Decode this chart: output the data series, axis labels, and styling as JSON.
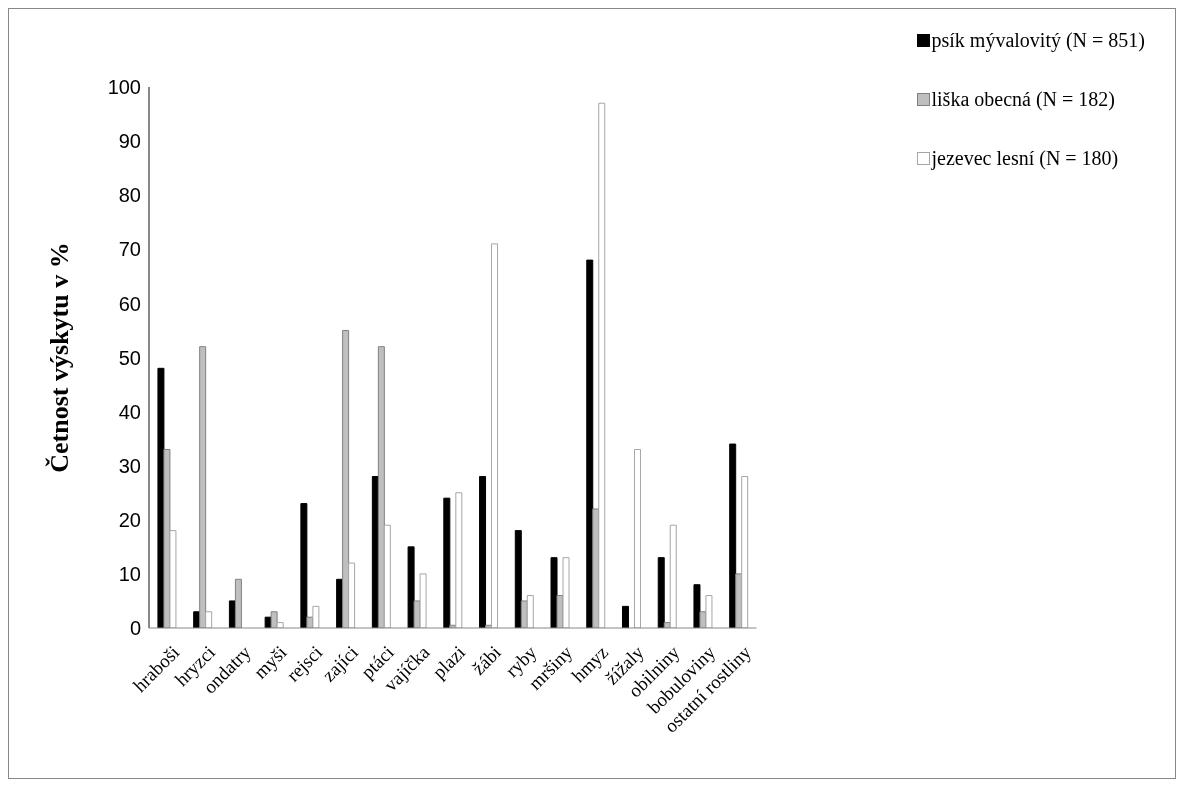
{
  "chart_data": {
    "type": "bar",
    "ylabel": "Četnost výskytu v %",
    "categories": [
      "hraboši",
      "hryzci",
      "ondatry",
      "myši",
      "rejsci",
      "zajíci",
      "ptáci",
      "vajíčka",
      "plazi",
      "žábi",
      "ryby",
      "mršiny",
      "hmyz",
      "žížaly",
      "obilniny",
      "bobuloviny",
      "ostatní rostliny"
    ],
    "series": [
      {
        "name": "psík mývalovitý (N = 851)",
        "color": "#000000",
        "values": [
          48,
          3,
          5,
          2,
          23,
          9,
          28,
          15,
          24,
          28,
          18,
          13,
          68,
          4,
          13,
          8,
          34
        ]
      },
      {
        "name": "liška obecná (N = 182)",
        "color": "#bfbfbf",
        "values": [
          33,
          52,
          9,
          3,
          2,
          55,
          52,
          5,
          0.5,
          0.5,
          5,
          6,
          22,
          0,
          1,
          3,
          10
        ]
      },
      {
        "name": "jezevec lesní (N = 180)",
        "color": "#ffffff",
        "values": [
          18,
          3,
          0,
          1,
          4,
          12,
          19,
          10,
          25,
          71,
          6,
          13,
          97,
          33,
          19,
          6,
          28
        ]
      }
    ],
    "ylim": [
      0,
      100
    ],
    "yticks": [
      0,
      10,
      20,
      30,
      40,
      50,
      60,
      70,
      80,
      90,
      100
    ],
    "grid": false,
    "legend": "top right"
  }
}
